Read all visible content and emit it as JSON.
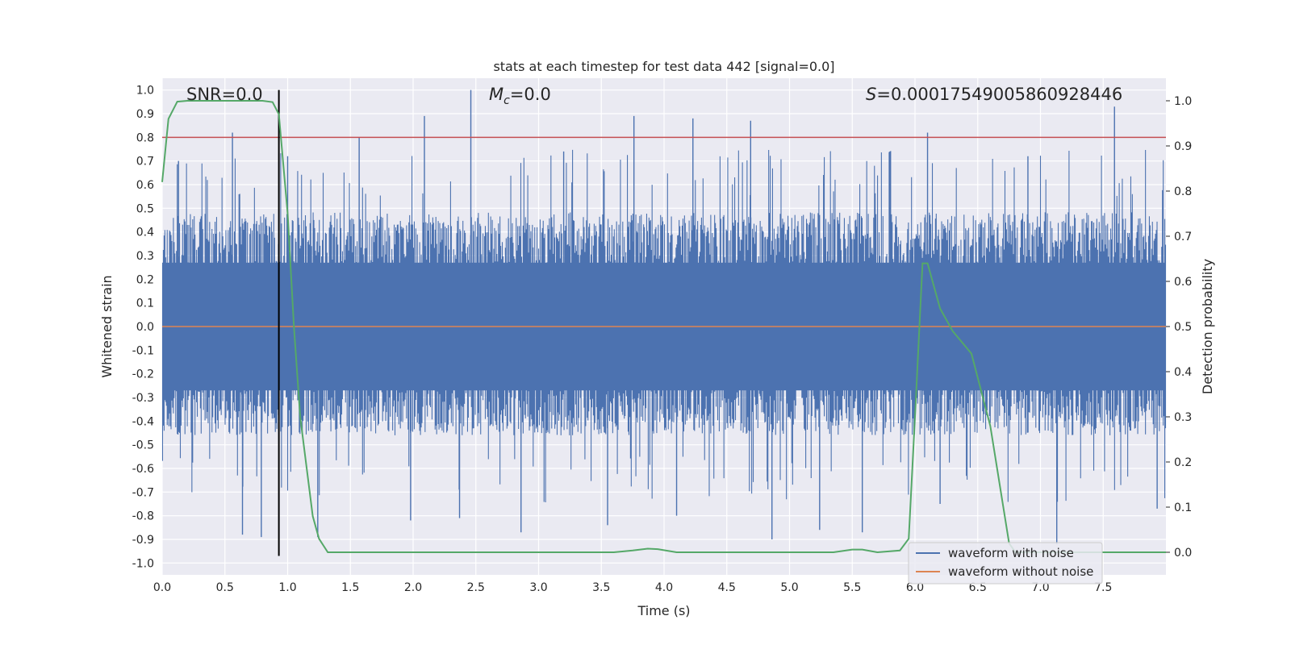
{
  "chart_data": {
    "type": "line",
    "title": "stats at each timestep for test data 442 [signal=0.0]",
    "xlabel": "Time (s)",
    "ylabel": "Whitened strain",
    "ylabel_right": "Detection probability",
    "xlim": [
      0.0,
      8.0
    ],
    "ylim": [
      -1.05,
      1.05
    ],
    "ylim_right": [
      -0.05,
      1.05
    ],
    "x_ticks": [
      0.0,
      0.5,
      1.0,
      1.5,
      2.0,
      2.5,
      3.0,
      3.5,
      4.0,
      4.5,
      5.0,
      5.5,
      6.0,
      6.5,
      7.0,
      7.5
    ],
    "x_tick_labels": [
      "0.0",
      "0.5",
      "1.0",
      "1.5",
      "2.0",
      "2.5",
      "3.0",
      "3.5",
      "4.0",
      "4.5",
      "5.0",
      "5.5",
      "6.0",
      "6.5",
      "7.0",
      "7.5"
    ],
    "y_ticks": [
      1.0,
      0.9,
      0.8,
      0.7,
      0.6,
      0.5,
      0.4,
      0.3,
      0.2,
      0.1,
      0.0,
      -0.1,
      -0.2,
      -0.3,
      -0.4,
      -0.5,
      -0.6,
      -0.7,
      -0.8,
      -0.9,
      -1.0
    ],
    "y_tick_labels": [
      "1.0",
      "0.9",
      "0.8",
      "0.7",
      "0.6",
      "0.5",
      "0.4",
      "0.3",
      "0.2",
      "0.1",
      "0.0",
      "-0.1",
      "-0.2",
      "-0.3",
      "-0.4",
      "-0.5",
      "-0.6",
      "-0.7",
      "-0.8",
      "-0.9",
      "-1.0"
    ],
    "y2_ticks": [
      1.0,
      0.9,
      0.8,
      0.7,
      0.6,
      0.5,
      0.4,
      0.3,
      0.2,
      0.1,
      0.0
    ],
    "y2_tick_labels": [
      "1.0",
      "0.9",
      "0.8",
      "0.7",
      "0.6",
      "0.5",
      "0.4",
      "0.3",
      "0.2",
      "0.1",
      "0.0"
    ],
    "annotations": {
      "snr": "SNR=0.0",
      "mc_symbol": "M",
      "mc_subscript": "c",
      "mc_value": "=0.0",
      "s_symbol": "S",
      "s_value": "=0.00017549005860928446"
    },
    "threshold_y": 0.8,
    "event_marker_time": 0.93,
    "noise_envelope": {
      "base_upper": 0.42,
      "base_lower": -0.4,
      "upper_spikes": [
        {
          "t": 0.56,
          "v": 0.82
        },
        {
          "t": 1.57,
          "v": 0.8
        },
        {
          "t": 2.09,
          "v": 0.89
        },
        {
          "t": 2.46,
          "v": 1.0
        },
        {
          "t": 3.76,
          "v": 0.89
        },
        {
          "t": 4.23,
          "v": 0.88
        },
        {
          "t": 4.69,
          "v": 0.87
        },
        {
          "t": 6.1,
          "v": 0.82
        },
        {
          "t": 7.59,
          "v": 0.93
        },
        {
          "t": 0.13,
          "v": 0.7
        },
        {
          "t": 1.0,
          "v": 0.72
        },
        {
          "t": 3.2,
          "v": 0.74
        },
        {
          "t": 5.8,
          "v": 0.74
        },
        {
          "t": 6.9,
          "v": 0.72
        }
      ],
      "lower_spikes": [
        {
          "t": 0.64,
          "v": -0.88
        },
        {
          "t": 0.79,
          "v": -0.89
        },
        {
          "t": 1.24,
          "v": -0.89
        },
        {
          "t": 2.37,
          "v": -0.81
        },
        {
          "t": 2.86,
          "v": -0.87
        },
        {
          "t": 3.55,
          "v": -0.84
        },
        {
          "t": 4.86,
          "v": -0.9
        },
        {
          "t": 5.24,
          "v": -0.86
        },
        {
          "t": 5.58,
          "v": -0.87
        },
        {
          "t": 7.13,
          "v": -0.92
        },
        {
          "t": 1.98,
          "v": -0.82
        },
        {
          "t": 4.1,
          "v": -0.8
        },
        {
          "t": 6.2,
          "v": -0.75
        },
        {
          "t": 7.93,
          "v": -0.77
        }
      ]
    },
    "series": [
      {
        "name": "waveform with noise",
        "color": "#4c72b0",
        "axis": "left"
      },
      {
        "name": "waveform without noise",
        "color": "#dd8452",
        "axis": "left",
        "x": [
          0.0,
          8.0
        ],
        "y": [
          0.0,
          0.0
        ]
      },
      {
        "name": "detection probability",
        "color": "#55a868",
        "axis": "right",
        "x": [
          0.0,
          0.05,
          0.12,
          0.2,
          0.4,
          0.6,
          0.8,
          0.88,
          0.93,
          1.0,
          1.05,
          1.1,
          1.2,
          1.25,
          1.32,
          1.5,
          2.0,
          3.0,
          3.6,
          3.75,
          3.87,
          3.95,
          4.1,
          4.5,
          5.0,
          5.35,
          5.5,
          5.58,
          5.7,
          5.88,
          5.95,
          6.0,
          6.06,
          6.1,
          6.2,
          6.3,
          6.45,
          6.6,
          6.75,
          6.8,
          7.0,
          8.0
        ],
        "y": [
          0.82,
          0.96,
          0.998,
          1.0,
          1.0,
          1.0,
          1.0,
          0.997,
          0.97,
          0.75,
          0.5,
          0.3,
          0.08,
          0.03,
          0.0,
          0.0,
          0.0,
          0.0,
          0.0,
          0.004,
          0.008,
          0.007,
          0.0,
          0.0,
          0.0,
          0.0,
          0.006,
          0.006,
          0.0,
          0.004,
          0.03,
          0.3,
          0.64,
          0.64,
          0.54,
          0.49,
          0.44,
          0.28,
          0.02,
          0.0,
          0.0,
          0.0
        ]
      }
    ],
    "threshold_color": "#c44e52",
    "event_marker_color": "#000000"
  },
  "legend": {
    "items": [
      {
        "label": "waveform with noise",
        "color": "#4c72b0"
      },
      {
        "label": "waveform without noise",
        "color": "#dd8452"
      }
    ]
  }
}
